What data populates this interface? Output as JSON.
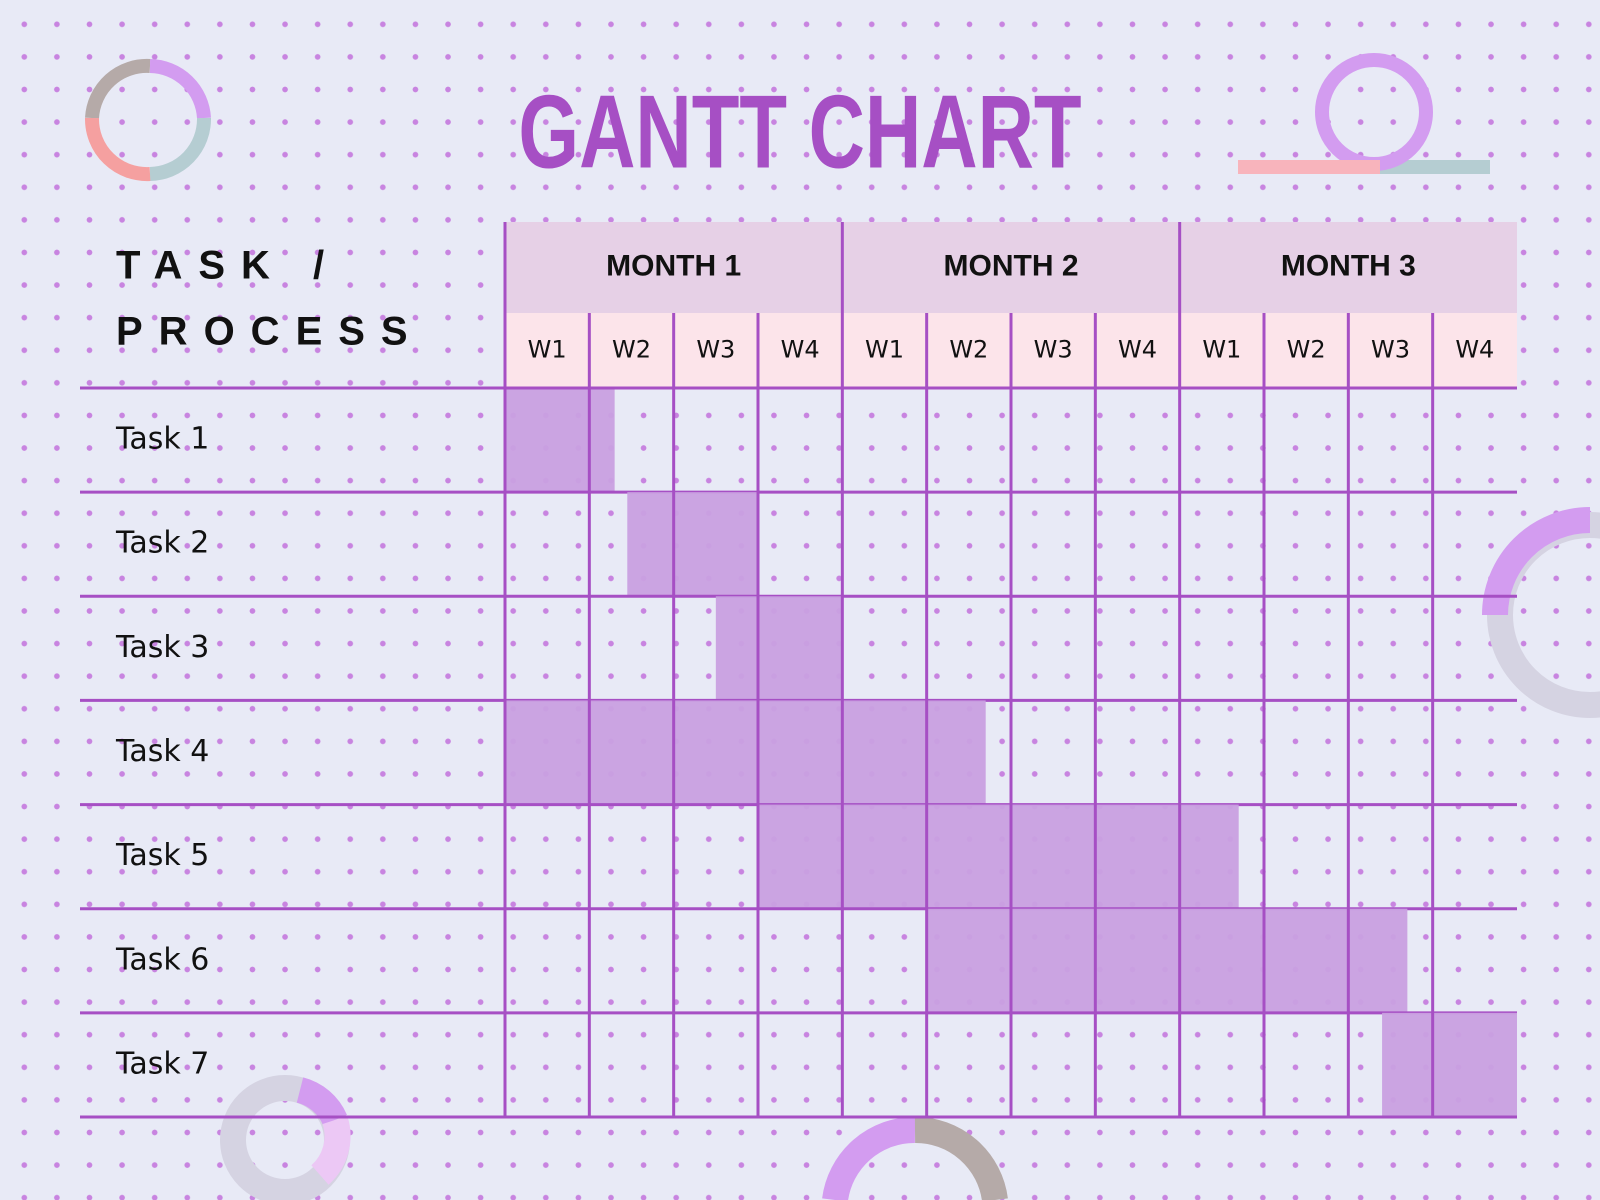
{
  "chart_data": {
    "type": "gantt",
    "title": "GANTT CHART",
    "row_header": [
      "TASK /",
      "PROCESS"
    ],
    "months": [
      "MONTH 1",
      "MONTH 2",
      "MONTH 3"
    ],
    "weeks": [
      "W1",
      "W2",
      "W3",
      "W4",
      "W1",
      "W2",
      "W3",
      "W4",
      "W1",
      "W2",
      "W3",
      "W4"
    ],
    "xlim": [
      0,
      12
    ],
    "categories": [
      "Task 1",
      "Task 2",
      "Task 3",
      "Task 4",
      "Task 5",
      "Task 6",
      "Task 7"
    ],
    "starts": [
      0,
      1.45,
      2.5,
      0,
      3,
      5,
      10.4
    ],
    "ends": [
      1.3,
      3,
      4,
      5.7,
      8.7,
      10.7,
      12
    ],
    "color": "#c9a0e0"
  }
}
